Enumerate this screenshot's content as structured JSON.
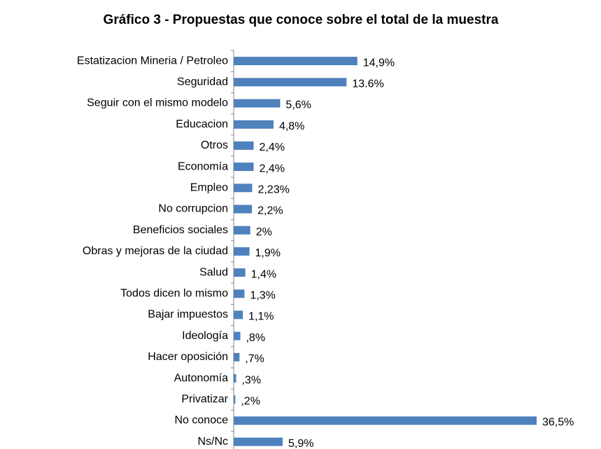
{
  "chart_data": {
    "type": "bar",
    "orientation": "horizontal",
    "title": "Gráfico 3 - Propuestas que conoce sobre el total de la muestra",
    "categories": [
      "Estatizacion Mineria / Petroleo",
      "Seguridad",
      "Seguir con el mismo modelo",
      "Educacion",
      "Otros",
      "Economía",
      "Empleo",
      "No corrupcion",
      "Beneficios sociales",
      "Obras y mejoras de la ciudad",
      "Salud",
      "Todos dicen lo mismo",
      "Bajar impuestos",
      "Ideología",
      "Hacer oposición",
      "Autonomía",
      "Privatizar",
      "No conoce",
      "Ns/Nc"
    ],
    "values": [
      14.9,
      13.6,
      5.6,
      4.8,
      2.4,
      2.4,
      2.23,
      2.2,
      2,
      1.9,
      1.4,
      1.3,
      1.1,
      0.8,
      0.7,
      0.3,
      0.2,
      36.5,
      5.9
    ],
    "value_labels": [
      "14,9%",
      "13.6%",
      "5,6%",
      "4,8%",
      "2,4%",
      "2,4%",
      "2,23%",
      "2,2%",
      "2%",
      "1,9%",
      "1,4%",
      "1,3%",
      "1,1%",
      ",8%",
      ",7%",
      ",3%",
      ",2%",
      "36,5%",
      "5,9%"
    ],
    "color": "#4f81bd"
  }
}
